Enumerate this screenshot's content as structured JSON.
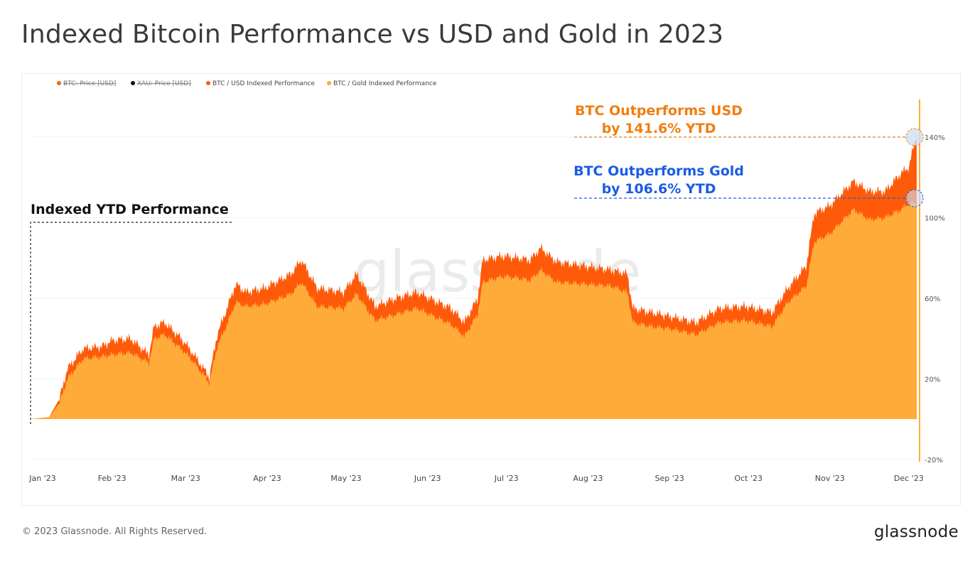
{
  "title": "Indexed Bitcoin Performance vs USD and Gold in 2023",
  "footer": "© 2023 Glassnode. All Rights Reserved.",
  "logo": "glassnode",
  "watermark": "glassnode",
  "colors": {
    "btc_price": "#e8661c",
    "xau_price": "#111111",
    "usd_perf": "#ff5a0a",
    "gold_perf": "#ffab3a",
    "annot_usd": "#f07d10",
    "annot_gold": "#1a5ce6"
  },
  "annotations": {
    "usd_line1": "BTC Outperforms USD",
    "usd_line2": "by 141.6% YTD",
    "gold_line1": "BTC Outperforms Gold",
    "gold_line2": "by 106.6% YTD",
    "box_label": "Indexed YTD Performance"
  },
  "chart_data": {
    "type": "area",
    "legend": [
      {
        "name": "BTC: Price [USD]",
        "hidden": true
      },
      {
        "name": "XAU: Price [USD]",
        "hidden": true
      },
      {
        "name": "BTC / USD Indexed Performance",
        "hidden": false
      },
      {
        "name": "BTC / Gold Indexed Performance",
        "hidden": false
      }
    ],
    "legend_position": "top-left",
    "x_ticks": [
      "Jan '23",
      "Feb '23",
      "Mar '23",
      "Apr '23",
      "May '23",
      "Jun '23",
      "Jul '23",
      "Aug '23",
      "Sep '23",
      "Oct '23",
      "Nov '23",
      "Dec '23"
    ],
    "y_ticks": [
      "-20%",
      "20%",
      "60%",
      "100%",
      "140%"
    ],
    "ylim": [
      -20,
      150
    ],
    "grid": true,
    "x": [
      "2023-01-01",
      "2023-01-08",
      "2023-01-12",
      "2023-01-15",
      "2023-01-21",
      "2023-01-28",
      "2023-02-01",
      "2023-02-08",
      "2023-02-15",
      "2023-02-17",
      "2023-02-21",
      "2023-02-28",
      "2023-03-03",
      "2023-03-10",
      "2023-03-13",
      "2023-03-17",
      "2023-03-20",
      "2023-03-24",
      "2023-03-31",
      "2023-04-10",
      "2023-04-14",
      "2023-04-20",
      "2023-04-30",
      "2023-05-05",
      "2023-05-12",
      "2023-05-20",
      "2023-05-28",
      "2023-06-05",
      "2023-06-10",
      "2023-06-15",
      "2023-06-20",
      "2023-06-22",
      "2023-06-30",
      "2023-07-10",
      "2023-07-14",
      "2023-07-20",
      "2023-07-31",
      "2023-08-10",
      "2023-08-16",
      "2023-08-18",
      "2023-08-25",
      "2023-09-01",
      "2023-09-11",
      "2023-09-20",
      "2023-09-30",
      "2023-10-10",
      "2023-10-16",
      "2023-10-23",
      "2023-10-26",
      "2023-11-01",
      "2023-11-10",
      "2023-11-16",
      "2023-11-22",
      "2023-11-28",
      "2023-12-01",
      "2023-12-04"
    ],
    "series": [
      {
        "name": "BTC / USD Indexed Performance",
        "values": [
          0,
          1,
          10,
          25,
          35,
          36,
          39,
          40,
          32,
          46,
          48,
          39,
          34,
          21,
          42,
          56,
          67,
          63,
          65,
          72,
          79,
          65,
          63,
          72,
          56,
          60,
          63,
          58,
          55,
          48,
          60,
          79,
          81,
          79,
          85,
          78,
          76,
          74,
          72,
          55,
          53,
          51,
          48,
          55,
          56,
          53,
          65,
          76,
          102,
          106,
          118,
          113,
          113,
          122,
          125,
          141.6
        ]
      },
      {
        "name": "BTC / Gold Indexed Performance",
        "values": [
          0,
          1,
          8,
          20,
          30,
          31,
          32,
          33,
          28,
          40,
          42,
          34,
          30,
          18,
          36,
          48,
          58,
          56,
          57,
          62,
          68,
          56,
          55,
          62,
          49,
          52,
          55,
          50,
          47,
          41,
          52,
          68,
          71,
          69,
          74,
          68,
          67,
          66,
          63,
          48,
          46,
          45,
          42,
          48,
          49,
          46,
          58,
          66,
          88,
          92,
          104,
          99,
          100,
          104,
          107,
          106.6
        ]
      }
    ]
  }
}
